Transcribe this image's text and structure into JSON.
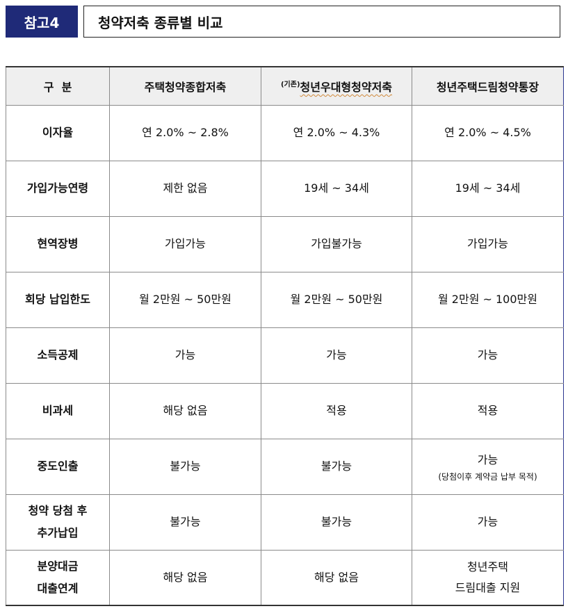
{
  "header": {
    "tag": "참고4",
    "title": "청약저축 종류별 비교"
  },
  "table": {
    "headers": {
      "category": "구  분",
      "col1": "주택청약종합저축",
      "col2_prefix": "(기존)",
      "col2": "청년우대형청약저축",
      "col3": "청년주택드림청약통장"
    },
    "rows": [
      {
        "label": "이자율",
        "c1": "연 2.0% ~ 2.8%",
        "c2": "연 2.0% ~ 4.3%",
        "c3": "연 2.0% ~ 4.5%"
      },
      {
        "label": "가입가능연령",
        "c1": "제한 없음",
        "c2": "19세 ~ 34세",
        "c3": "19세 ~ 34세"
      },
      {
        "label": "현역장병",
        "c1": "가입가능",
        "c2": "가입불가능",
        "c3": "가입가능"
      },
      {
        "label": "회당 납입한도",
        "c1": "월 2만원 ~ 50만원",
        "c2": "월 2만원 ~ 50만원",
        "c3": "월 2만원 ~ 100만원"
      },
      {
        "label": "소득공제",
        "c1": "가능",
        "c2": "가능",
        "c3": "가능"
      },
      {
        "label": "비과세",
        "c1": "해당 없음",
        "c2": "적용",
        "c3": "적용"
      },
      {
        "label": "중도인출",
        "c1": "불가능",
        "c2": "불가능",
        "c3": "가능",
        "c3_note": "(당첨이후 계약금 납부 목적)"
      },
      {
        "label_line1": "청약 당첨 후",
        "label_line2": "추가납입",
        "c1": "불가능",
        "c2": "불가능",
        "c3": "가능"
      },
      {
        "label_line1": "분양대금",
        "label_line2": "대출연계",
        "c1": "해당 없음",
        "c2": "해당 없음",
        "c3_line1": "청년주택",
        "c3_line2": "드림대출 지원"
      }
    ]
  }
}
